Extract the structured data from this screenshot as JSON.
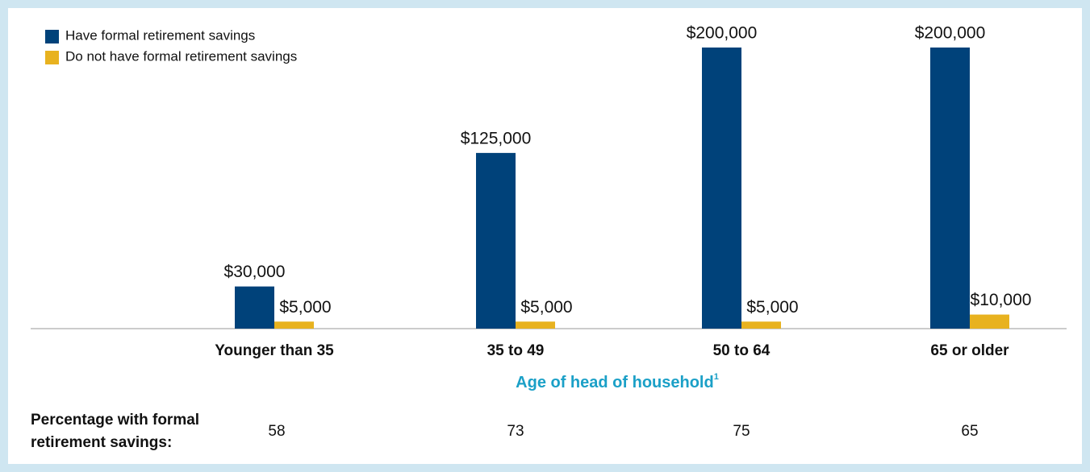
{
  "chart_data": {
    "type": "bar",
    "categories": [
      "Younger than 35",
      "35 to 49",
      "50 to 64",
      "65 or older"
    ],
    "series": [
      {
        "name": "Have formal retirement savings",
        "color": "#00427a",
        "values": [
          30000,
          125000,
          200000,
          200000
        ],
        "value_labels": [
          "$30,000",
          "$125,000",
          "$200,000",
          "$200,000"
        ]
      },
      {
        "name": "Do not have formal retirement savings",
        "color": "#e8b21f",
        "values": [
          5000,
          5000,
          5000,
          10000
        ],
        "value_labels": [
          "$5,000",
          "$5,000",
          "$5,000",
          "$10,000"
        ]
      }
    ],
    "ylim": [
      0,
      200000
    ],
    "xlabel": "Age of head of household",
    "xlabel_note": "1",
    "percentage_label": [
      "Percentage with formal",
      "retirement savings:"
    ],
    "percentages": [
      58,
      73,
      75,
      65
    ]
  }
}
